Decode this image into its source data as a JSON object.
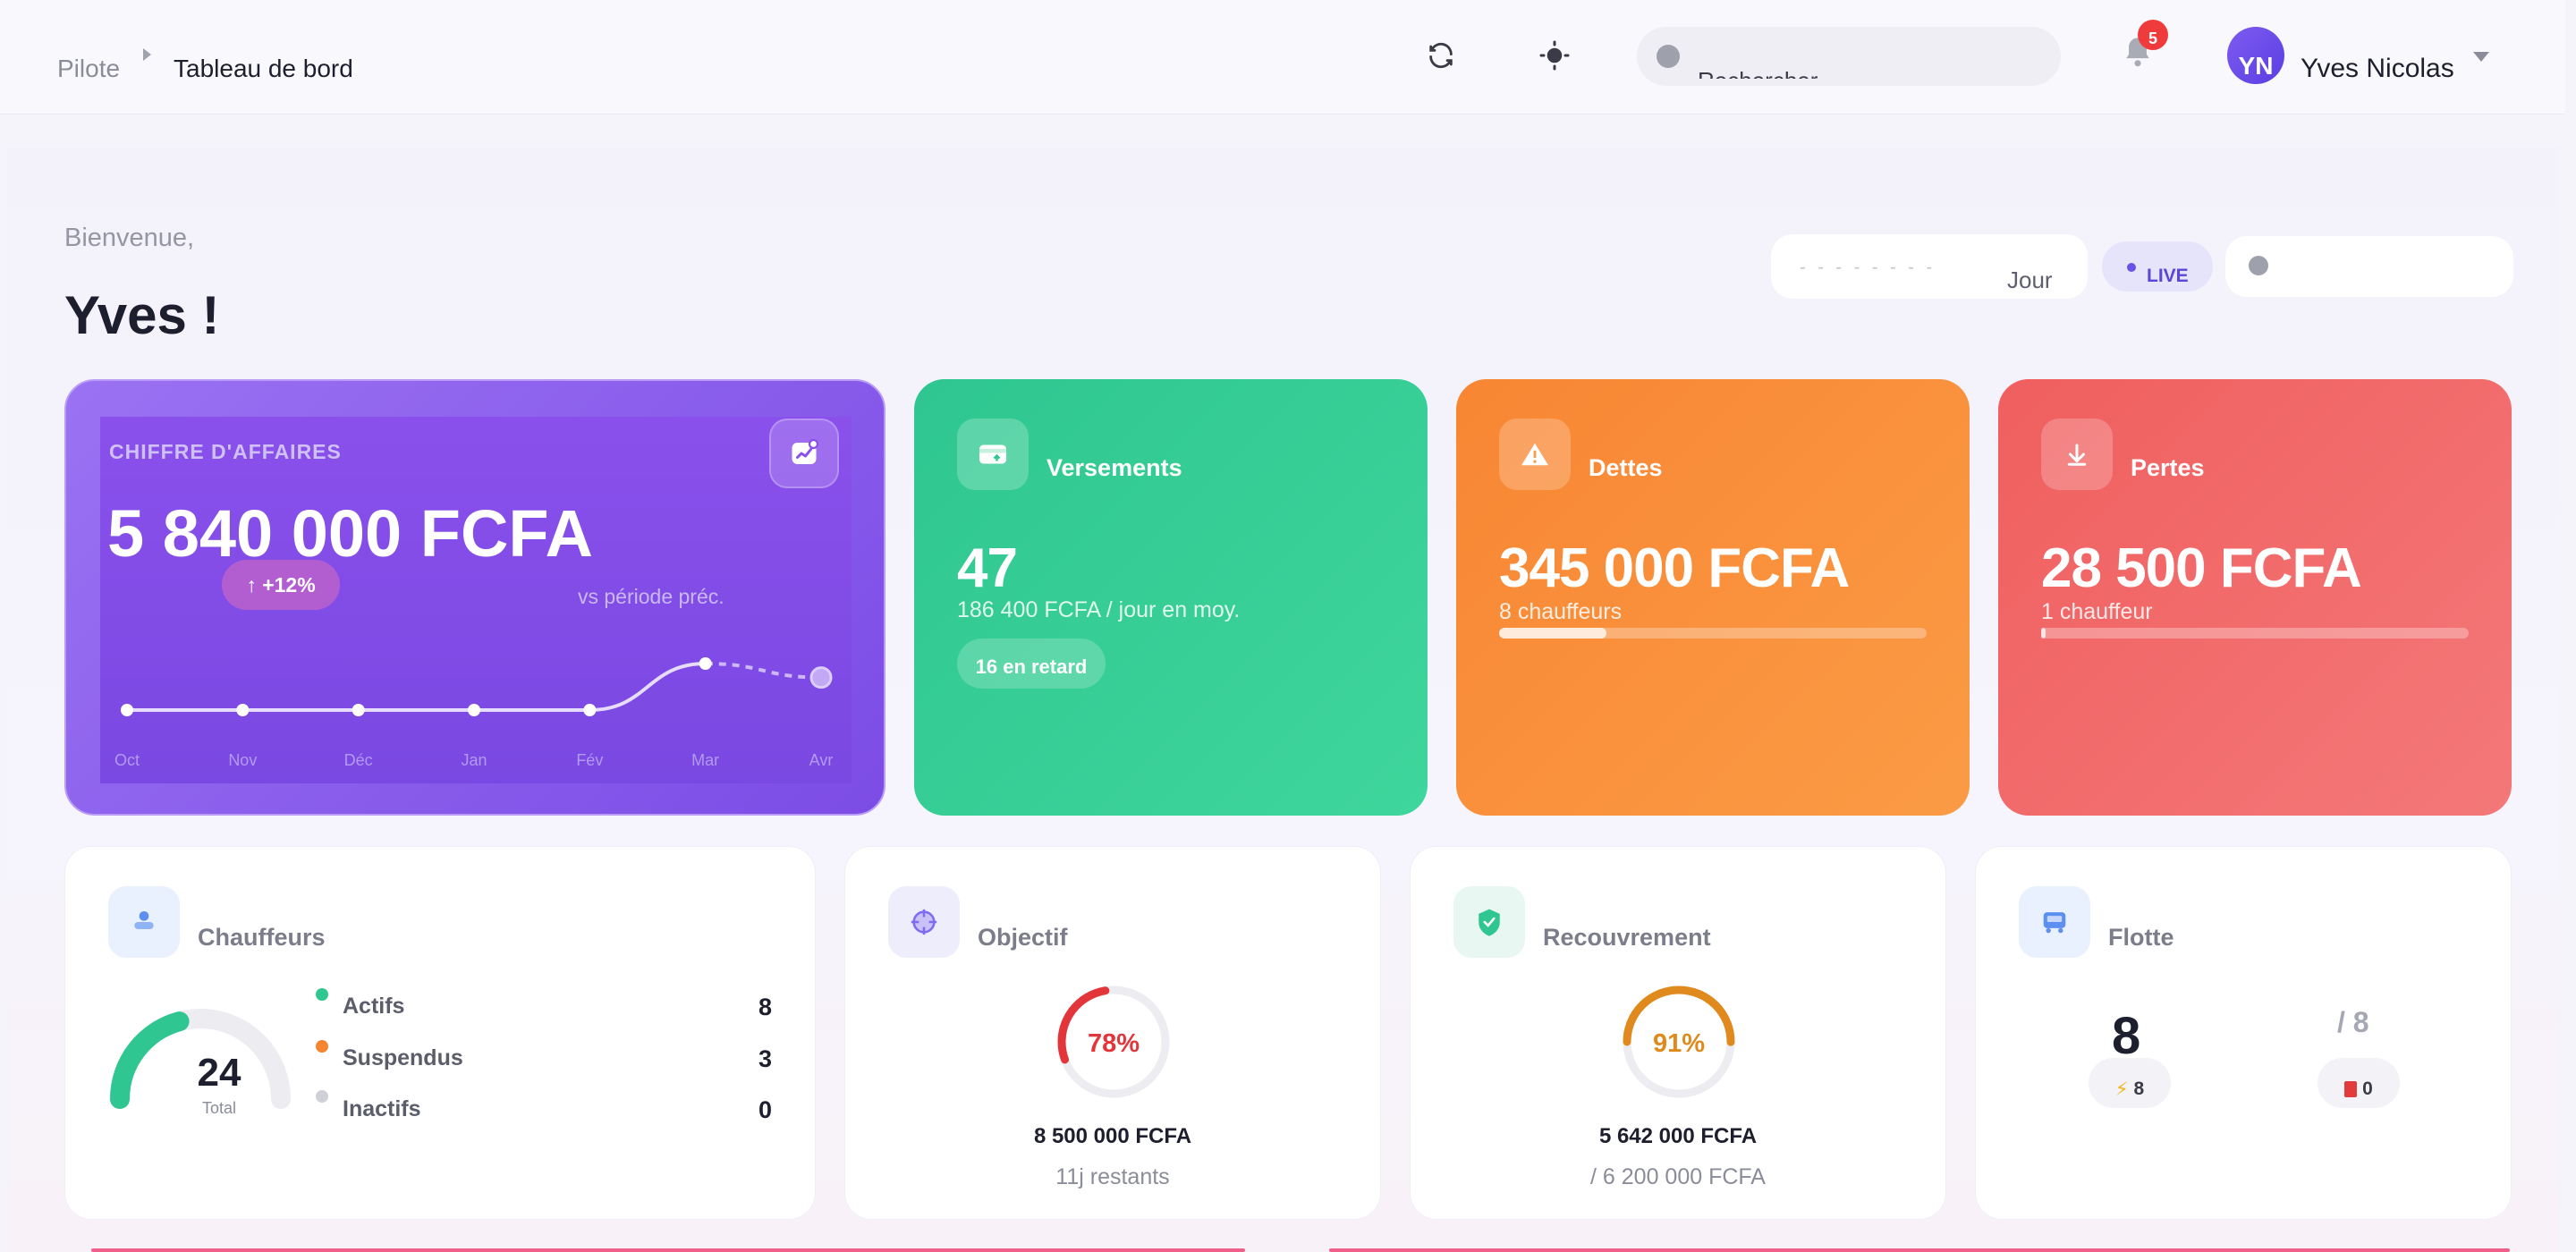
{
  "header": {
    "breadcrumb_root": "Pilote",
    "breadcrumb_current": "Tableau de bord",
    "search_placeholder": "Rechercher",
    "notification_count": "5",
    "user_initials": "YN",
    "user_name": "Yves Nicolas"
  },
  "greeting": {
    "welcome": "Bienvenue,",
    "name": "Yves !"
  },
  "filters": {
    "date_placeholder": "- - - -   - -   - -",
    "period": "Jour",
    "live": "LIVE"
  },
  "revenue": {
    "label": "CHIFFRE D'AFFAIRES",
    "value": "5 840 000 FCFA",
    "trend": "+12%",
    "compare": "vs période préc.",
    "months": [
      "Oct",
      "Nov",
      "Déc",
      "Jan",
      "Fév",
      "Mar",
      "Avr"
    ],
    "points": [
      0,
      0,
      0,
      0,
      0,
      1,
      0.7
    ]
  },
  "kpis": {
    "versements": {
      "label": "Versements",
      "value": "47",
      "sub": "186 400 FCFA / jour en moy.",
      "late": "16 en retard"
    },
    "dettes": {
      "label": "Dettes",
      "value": "345 000 FCFA",
      "sub": "8 chauffeurs",
      "progress": 0.25
    },
    "pertes": {
      "label": "Pertes",
      "value": "28 500 FCFA",
      "sub": "1 chauffeur",
      "progress": 0.01
    }
  },
  "drivers": {
    "title": "Chauffeurs",
    "total": "24",
    "total_label": "Total",
    "items": [
      {
        "label": "Actifs",
        "count": "8",
        "color": "#2fc691"
      },
      {
        "label": "Suspendus",
        "count": "3",
        "color": "#f7842f"
      },
      {
        "label": "Inactifs",
        "count": "0",
        "color": "#d0d1d8"
      }
    ],
    "active_ratio": 0.333
  },
  "objectif": {
    "title": "Objectif",
    "percent": "78%",
    "ratio": 0.78,
    "amount": "8 500 000 FCFA",
    "remaining": "11j restants",
    "color": "#e2363b"
  },
  "recouvrement": {
    "title": "Recouvrement",
    "percent": "91%",
    "ratio": 0.91,
    "amount": "5 642 000 FCFA",
    "total": "/ 6 200 000 FCFA",
    "color": "#e08a1e"
  },
  "flotte": {
    "title": "Flotte",
    "count": "8",
    "of": "/ 8",
    "active": "8",
    "fuel": "0"
  }
}
